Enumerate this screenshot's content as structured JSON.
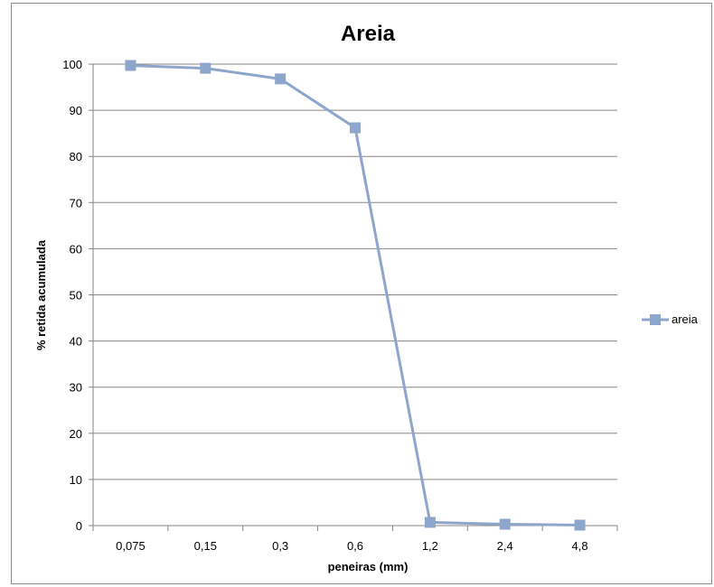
{
  "chart_data": {
    "type": "line",
    "title": "Areia",
    "xlabel": "peneiras (mm)",
    "ylabel": "% retida acumulada",
    "categories": [
      "0,075",
      "0,15",
      "0,3",
      "0,6",
      "1,2",
      "2,4",
      "4,8"
    ],
    "series": [
      {
        "name": "areia",
        "values": [
          99.7,
          99.1,
          96.8,
          86.2,
          0.7,
          0.3,
          0.1
        ],
        "color": "#8EA5CC",
        "marker": "square"
      }
    ],
    "ylim": [
      0,
      100
    ],
    "yticks": [
      0,
      10,
      20,
      30,
      40,
      50,
      60,
      70,
      80,
      90,
      100
    ],
    "grid": true,
    "legend_position": "right"
  }
}
